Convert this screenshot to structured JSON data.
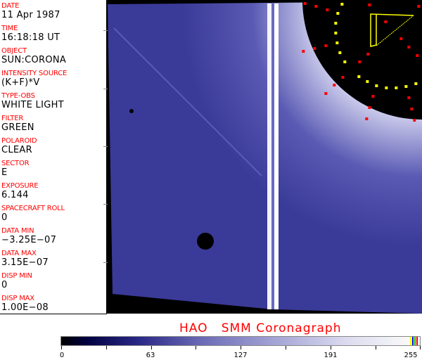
{
  "header_fields": [
    {
      "label": "DATE",
      "value": "11 Apr 1987"
    },
    {
      "label": "TIME",
      "value": "16:18:18 UT"
    },
    {
      "label": "OBJECT",
      "value": "SUN:CORONA"
    },
    {
      "label": "INTENSITY SOURCE",
      "value": "(K+F)*V"
    },
    {
      "label": "TYPE-OBS",
      "value": "WHITE LIGHT"
    },
    {
      "label": "FILTER",
      "value": "GREEN"
    },
    {
      "label": "POLAROID",
      "value": "CLEAR"
    },
    {
      "label": "SECTOR",
      "value": "E"
    },
    {
      "label": "EXPOSURE",
      "value": "6.144"
    },
    {
      "label": "SPACECRAFT ROLL",
      "value": "0"
    },
    {
      "label": "DATA MIN",
      "value": "−3.25E−07"
    },
    {
      "label": "DATA MAX",
      "value": "3.15E−07"
    },
    {
      "label": "DISP MIN",
      "value": "0"
    },
    {
      "label": "DISP MAX",
      "value": "1.00E−08"
    }
  ],
  "title": "HAO   SMM Coronagraph",
  "colorbar": {
    "ticks": [
      "0",
      "63",
      "127",
      "191",
      "255"
    ],
    "min": 0,
    "max": 255,
    "end_swatches": [
      "#ffff00",
      "#0000ff",
      "#00c000",
      "#ff0000"
    ]
  },
  "colors": {
    "label": "#ff0000",
    "plate": "#4a4aa8",
    "occulter": "#000000"
  }
}
